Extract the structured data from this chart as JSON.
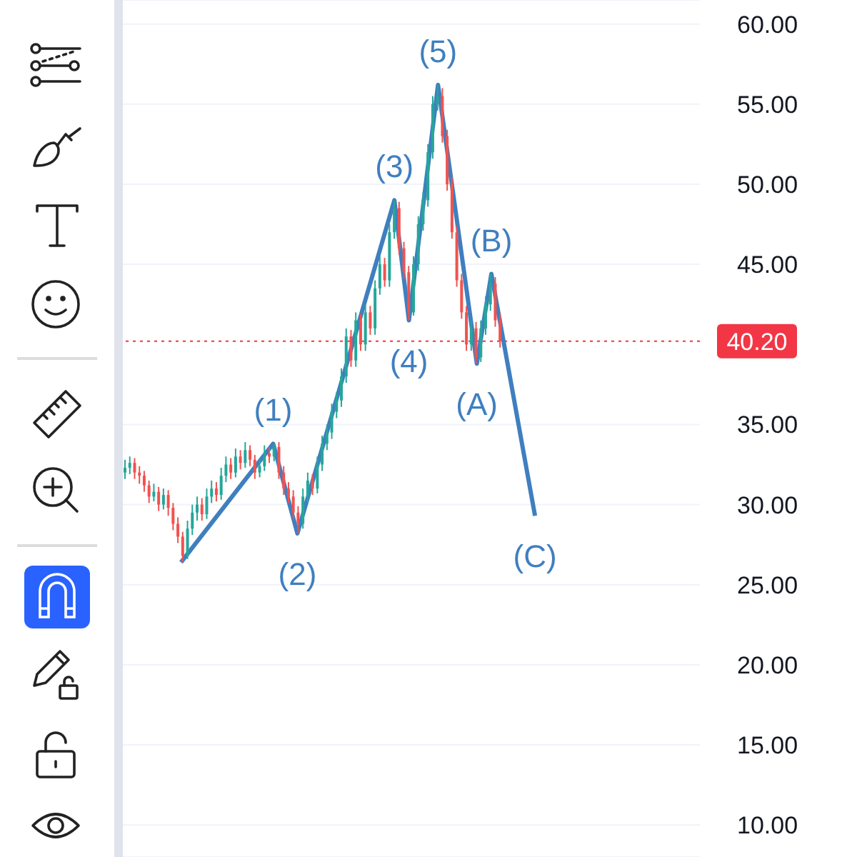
{
  "chart_data": {
    "type": "candlestick",
    "categories": [
      null,
      null,
      null,
      null,
      null,
      null,
      null,
      null,
      null,
      null,
      null,
      null,
      null,
      null,
      null,
      null,
      null,
      null,
      null,
      null,
      null,
      null,
      null,
      null,
      null,
      null,
      null,
      null,
      null,
      null,
      null,
      null,
      null,
      null,
      null,
      null,
      null,
      null,
      null,
      null,
      null,
      null,
      null,
      null,
      null,
      null,
      null,
      null,
      null,
      null,
      null,
      null,
      null,
      null,
      null,
      null,
      null,
      null,
      null,
      null,
      null,
      null,
      null,
      null,
      null,
      null,
      null,
      null,
      null,
      null,
      null,
      null,
      null,
      null,
      null,
      null,
      null,
      null,
      null,
      null,
      null,
      null,
      null,
      null,
      null,
      null,
      null,
      null,
      null,
      null,
      null,
      null,
      null,
      null,
      null,
      null,
      null,
      null,
      null,
      null,
      null,
      null,
      null,
      null,
      null,
      null,
      null,
      null,
      null,
      null,
      null,
      null,
      null,
      null,
      null,
      null,
      null,
      null,
      null,
      null
    ],
    "colors": [
      "#26a69a",
      "#26a69a",
      "#ef5350",
      "#ef5350",
      "#ef5350",
      "#ef5350",
      "#26a69a",
      "#ef5350",
      "#26a69a",
      "#ef5350",
      "#ef5350",
      "#ef5350",
      "#ef5350",
      "#26a69a",
      "#26a69a",
      "#26a69a",
      "#ef5350",
      "#26a69a",
      "#26a69a",
      "#ef5350",
      "#26a69a",
      "#26a69a",
      "#ef5350",
      "#26a69a",
      "#ef5350",
      "#26a69a",
      "#ef5350",
      "#ef5350",
      "#26a69a",
      "#26a69a",
      "#ef5350",
      "#26a69a",
      "#ef5350",
      "#ef5350",
      "#ef5350",
      "#ef5350",
      "#ef5350",
      "#26a69a",
      "#26a69a",
      "#ef5350",
      "#26a69a",
      "#26a69a",
      "#26a69a",
      "#26a69a",
      "#26a69a",
      "#26a69a",
      "#26a69a",
      "#ef5350",
      "#26a69a",
      "#ef5350",
      "#26a69a",
      "#ef5350",
      "#26a69a",
      "#26a69a",
      "#ef5350",
      "#26a69a",
      "#26a69a",
      "#ef5350",
      "#ef5350",
      "#ef5350",
      "#26a69a",
      "#26a69a",
      "#26a69a",
      "#26a69a",
      "#26a69a",
      "#26a69a",
      "#ef5350",
      "#ef5350",
      "#ef5350",
      "#ef5350",
      "#ef5350",
      "#ef5350",
      "#26a69a",
      "#ef5350",
      "#26a69a",
      "#26a69a",
      "#26a69a",
      "#ef5350",
      "#ef5350",
      null,
      null,
      null,
      null,
      null,
      null,
      null,
      null,
      null,
      null,
      null,
      null,
      null,
      null,
      null,
      null,
      null,
      null,
      null,
      null,
      null,
      null,
      null,
      null,
      null,
      null,
      null,
      null,
      null,
      null,
      null,
      null,
      null,
      null,
      null,
      null,
      null,
      null,
      null,
      null,
      null
    ],
    "ohlc": [
      [
        32.0,
        32.8,
        31.6,
        32.3
      ],
      [
        32.3,
        33.0,
        31.9,
        32.6
      ],
      [
        32.6,
        32.9,
        31.6,
        32.0
      ],
      [
        32.0,
        32.4,
        31.3,
        31.8
      ],
      [
        31.8,
        32.1,
        30.8,
        31.2
      ],
      [
        31.2,
        31.5,
        30.1,
        30.5
      ],
      [
        30.5,
        31.3,
        30.2,
        30.8
      ],
      [
        30.8,
        31.1,
        29.6,
        30.0
      ],
      [
        30.0,
        31.0,
        29.7,
        30.6
      ],
      [
        30.6,
        30.9,
        29.3,
        29.8
      ],
      [
        29.8,
        30.1,
        28.4,
        28.8
      ],
      [
        28.8,
        29.2,
        27.6,
        28.0
      ],
      [
        28.0,
        28.3,
        26.4,
        26.8
      ],
      [
        26.8,
        29.0,
        26.6,
        28.5
      ],
      [
        28.5,
        30.0,
        28.1,
        29.5
      ],
      [
        29.5,
        30.5,
        29.0,
        30.0
      ],
      [
        30.0,
        30.4,
        29.0,
        29.4
      ],
      [
        29.4,
        31.0,
        29.1,
        30.5
      ],
      [
        30.5,
        31.5,
        30.1,
        31.0
      ],
      [
        31.0,
        31.4,
        30.2,
        30.6
      ],
      [
        30.6,
        32.3,
        30.3,
        31.8
      ],
      [
        31.8,
        33.0,
        31.4,
        32.5
      ],
      [
        32.5,
        32.9,
        31.6,
        32.0
      ],
      [
        32.0,
        33.5,
        31.7,
        33.0
      ],
      [
        33.0,
        33.4,
        32.2,
        32.6
      ],
      [
        32.6,
        33.9,
        32.3,
        33.4
      ],
      [
        33.4,
        33.7,
        32.4,
        32.8
      ],
      [
        32.8,
        33.1,
        31.6,
        32.0
      ],
      [
        32.0,
        32.9,
        31.7,
        32.4
      ],
      [
        32.4,
        33.7,
        32.1,
        33.2
      ],
      [
        33.2,
        33.6,
        32.6,
        33.0
      ],
      [
        33.0,
        33.8,
        32.7,
        33.6
      ],
      [
        33.6,
        33.9,
        31.6,
        32.0
      ],
      [
        32.0,
        32.4,
        30.6,
        31.0
      ],
      [
        31.0,
        31.4,
        30.1,
        30.5
      ],
      [
        30.5,
        30.9,
        29.1,
        29.5
      ],
      [
        29.5,
        29.9,
        28.2,
        28.8
      ],
      [
        28.8,
        31.0,
        28.5,
        30.5
      ],
      [
        30.5,
        32.0,
        30.1,
        31.5
      ],
      [
        31.5,
        31.9,
        30.6,
        31.0
      ],
      [
        31.0,
        33.0,
        30.7,
        32.5
      ],
      [
        32.5,
        34.3,
        32.1,
        33.8
      ],
      [
        33.8,
        35.0,
        33.4,
        34.5
      ],
      [
        34.5,
        36.3,
        34.1,
        35.8
      ],
      [
        35.8,
        37.0,
        35.4,
        36.5
      ],
      [
        36.5,
        38.5,
        36.1,
        38.0
      ],
      [
        38.0,
        41.0,
        37.6,
        40.5
      ],
      [
        40.5,
        40.9,
        38.6,
        39.0
      ],
      [
        39.0,
        42.0,
        38.6,
        41.5
      ],
      [
        41.5,
        41.9,
        39.6,
        40.0
      ],
      [
        40.0,
        42.5,
        39.6,
        42.0
      ],
      [
        42.0,
        42.4,
        40.6,
        41.0
      ],
      [
        41.0,
        44.0,
        40.6,
        43.5
      ],
      [
        43.5,
        45.5,
        43.1,
        45.0
      ],
      [
        45.0,
        45.4,
        43.6,
        44.0
      ],
      [
        44.0,
        47.5,
        43.6,
        47.0
      ],
      [
        47.0,
        49.0,
        46.6,
        48.5
      ],
      [
        48.5,
        48.9,
        45.6,
        46.0
      ],
      [
        46.0,
        46.4,
        44.1,
        44.5
      ],
      [
        44.5,
        44.9,
        41.5,
        42.0
      ],
      [
        42.0,
        45.5,
        41.8,
        45.0
      ],
      [
        45.0,
        48.0,
        44.6,
        47.5
      ],
      [
        47.5,
        49.5,
        47.1,
        49.0
      ],
      [
        49.0,
        52.5,
        48.6,
        52.0
      ],
      [
        52.0,
        55.5,
        51.6,
        55.0
      ],
      [
        55.0,
        56.2,
        54.6,
        55.5
      ],
      [
        55.5,
        56.0,
        52.6,
        53.0
      ],
      [
        53.0,
        53.4,
        49.6,
        50.0
      ],
      [
        50.0,
        50.4,
        46.6,
        47.0
      ],
      [
        47.0,
        47.4,
        43.6,
        44.0
      ],
      [
        44.0,
        44.4,
        41.6,
        42.0
      ],
      [
        42.0,
        42.4,
        39.6,
        40.0
      ],
      [
        40.0,
        41.5,
        39.6,
        41.0
      ],
      [
        41.0,
        41.4,
        38.8,
        39.2
      ],
      [
        39.2,
        41.5,
        38.9,
        41.0
      ],
      [
        41.0,
        43.0,
        40.6,
        42.5
      ],
      [
        42.5,
        44.4,
        42.1,
        43.8
      ],
      [
        43.8,
        44.2,
        41.1,
        41.5
      ],
      [
        41.5,
        41.9,
        39.8,
        40.2
      ],
      null,
      null,
      null,
      null,
      null,
      null,
      null,
      null,
      null,
      null,
      null,
      null,
      null,
      null,
      null,
      null,
      null,
      null,
      null,
      null,
      null,
      null,
      null,
      null,
      null,
      null,
      null,
      null,
      null,
      null,
      null,
      null,
      null,
      null,
      null,
      null,
      null,
      null,
      null,
      null,
      null
    ],
    "series": [
      {
        "type": "line",
        "color": "#3f7fbf",
        "values": [
          null,
          null,
          null,
          null,
          null,
          null,
          null,
          null,
          null,
          null,
          null,
          null,
          26.4,
          null,
          null,
          null,
          null,
          null,
          null,
          null,
          null,
          null,
          null,
          null,
          null,
          null,
          null,
          null,
          null,
          null,
          null,
          33.8,
          null,
          null,
          null,
          null,
          28.2,
          null,
          null,
          null,
          null,
          null,
          null,
          null,
          null,
          null,
          null,
          null,
          null,
          null,
          null,
          null,
          null,
          null,
          null,
          null,
          49.0,
          null,
          null,
          41.5,
          null,
          null,
          null,
          null,
          null,
          56.2,
          null,
          null,
          null,
          null,
          null,
          null,
          null,
          38.8,
          null,
          null,
          44.4,
          null,
          null,
          null,
          null,
          null,
          null,
          null,
          null,
          29.3,
          null,
          null,
          null,
          null,
          null,
          null,
          null,
          null,
          null,
          null,
          null,
          null,
          null,
          null,
          null,
          null,
          null,
          null,
          null,
          null,
          null,
          null,
          null,
          null,
          null,
          null,
          null,
          null,
          null,
          null,
          null,
          null,
          null,
          null
        ]
      }
    ],
    "annotations": [
      {
        "text": "(1)",
        "y": 33.8
      },
      {
        "text": "(2)",
        "y": 28.2
      },
      {
        "text": "(3)",
        "y": 49.0
      },
      {
        "text": "(4)",
        "y": 41.5
      },
      {
        "text": "(5)",
        "y": 56.2
      },
      {
        "text": "(A)",
        "y": 38.8
      },
      {
        "text": "(B)",
        "y": 44.4
      },
      {
        "text": "(C)",
        "y": 29.3
      }
    ],
    "ref_lines": [
      {
        "axis": "y",
        "value": 40.2,
        "label": "40.20",
        "color": "#f23645",
        "line_style": "dotted"
      }
    ],
    "ylim": [
      8,
      61.5
    ],
    "yticks": [
      {
        "value": 10,
        "label": "10.00"
      },
      {
        "value": 15,
        "label": "15.00"
      },
      {
        "value": 20,
        "label": "20.00"
      },
      {
        "value": 25,
        "label": "25.00"
      },
      {
        "value": 30,
        "label": "30.00"
      },
      {
        "value": 35,
        "label": "35.00"
      },
      {
        "value": 45,
        "label": "45.00"
      },
      {
        "value": 50,
        "label": "50.00"
      },
      {
        "value": 55,
        "label": "55.00"
      },
      {
        "value": 60,
        "label": "60.00"
      }
    ],
    "grid": "y",
    "tick_labels": "y"
  }
}
